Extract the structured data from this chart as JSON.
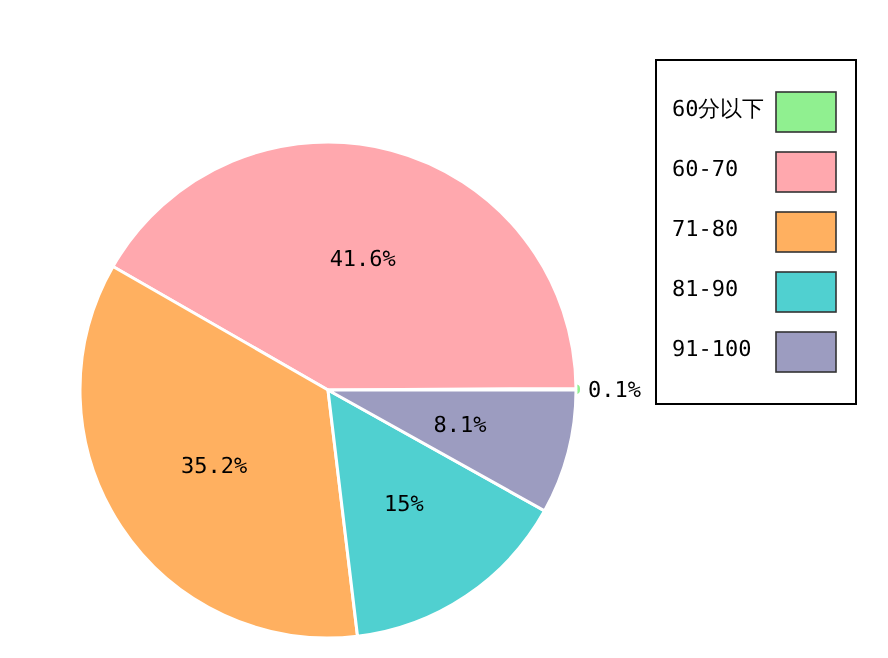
{
  "chart_data": {
    "type": "pie",
    "categories": [
      "60分以下",
      "60-70",
      "71-80",
      "81-90",
      "91-100"
    ],
    "values": [
      0.1,
      41.6,
      35.2,
      15,
      8.1
    ],
    "colors": [
      "#90f090",
      "#ffa8ae",
      "#ffb060",
      "#50d0d0",
      "#9c9cc0"
    ],
    "value_labels": [
      "0.1%",
      "41.6%",
      "35.2%",
      "15%",
      "8.1%"
    ],
    "legend": "top right"
  }
}
